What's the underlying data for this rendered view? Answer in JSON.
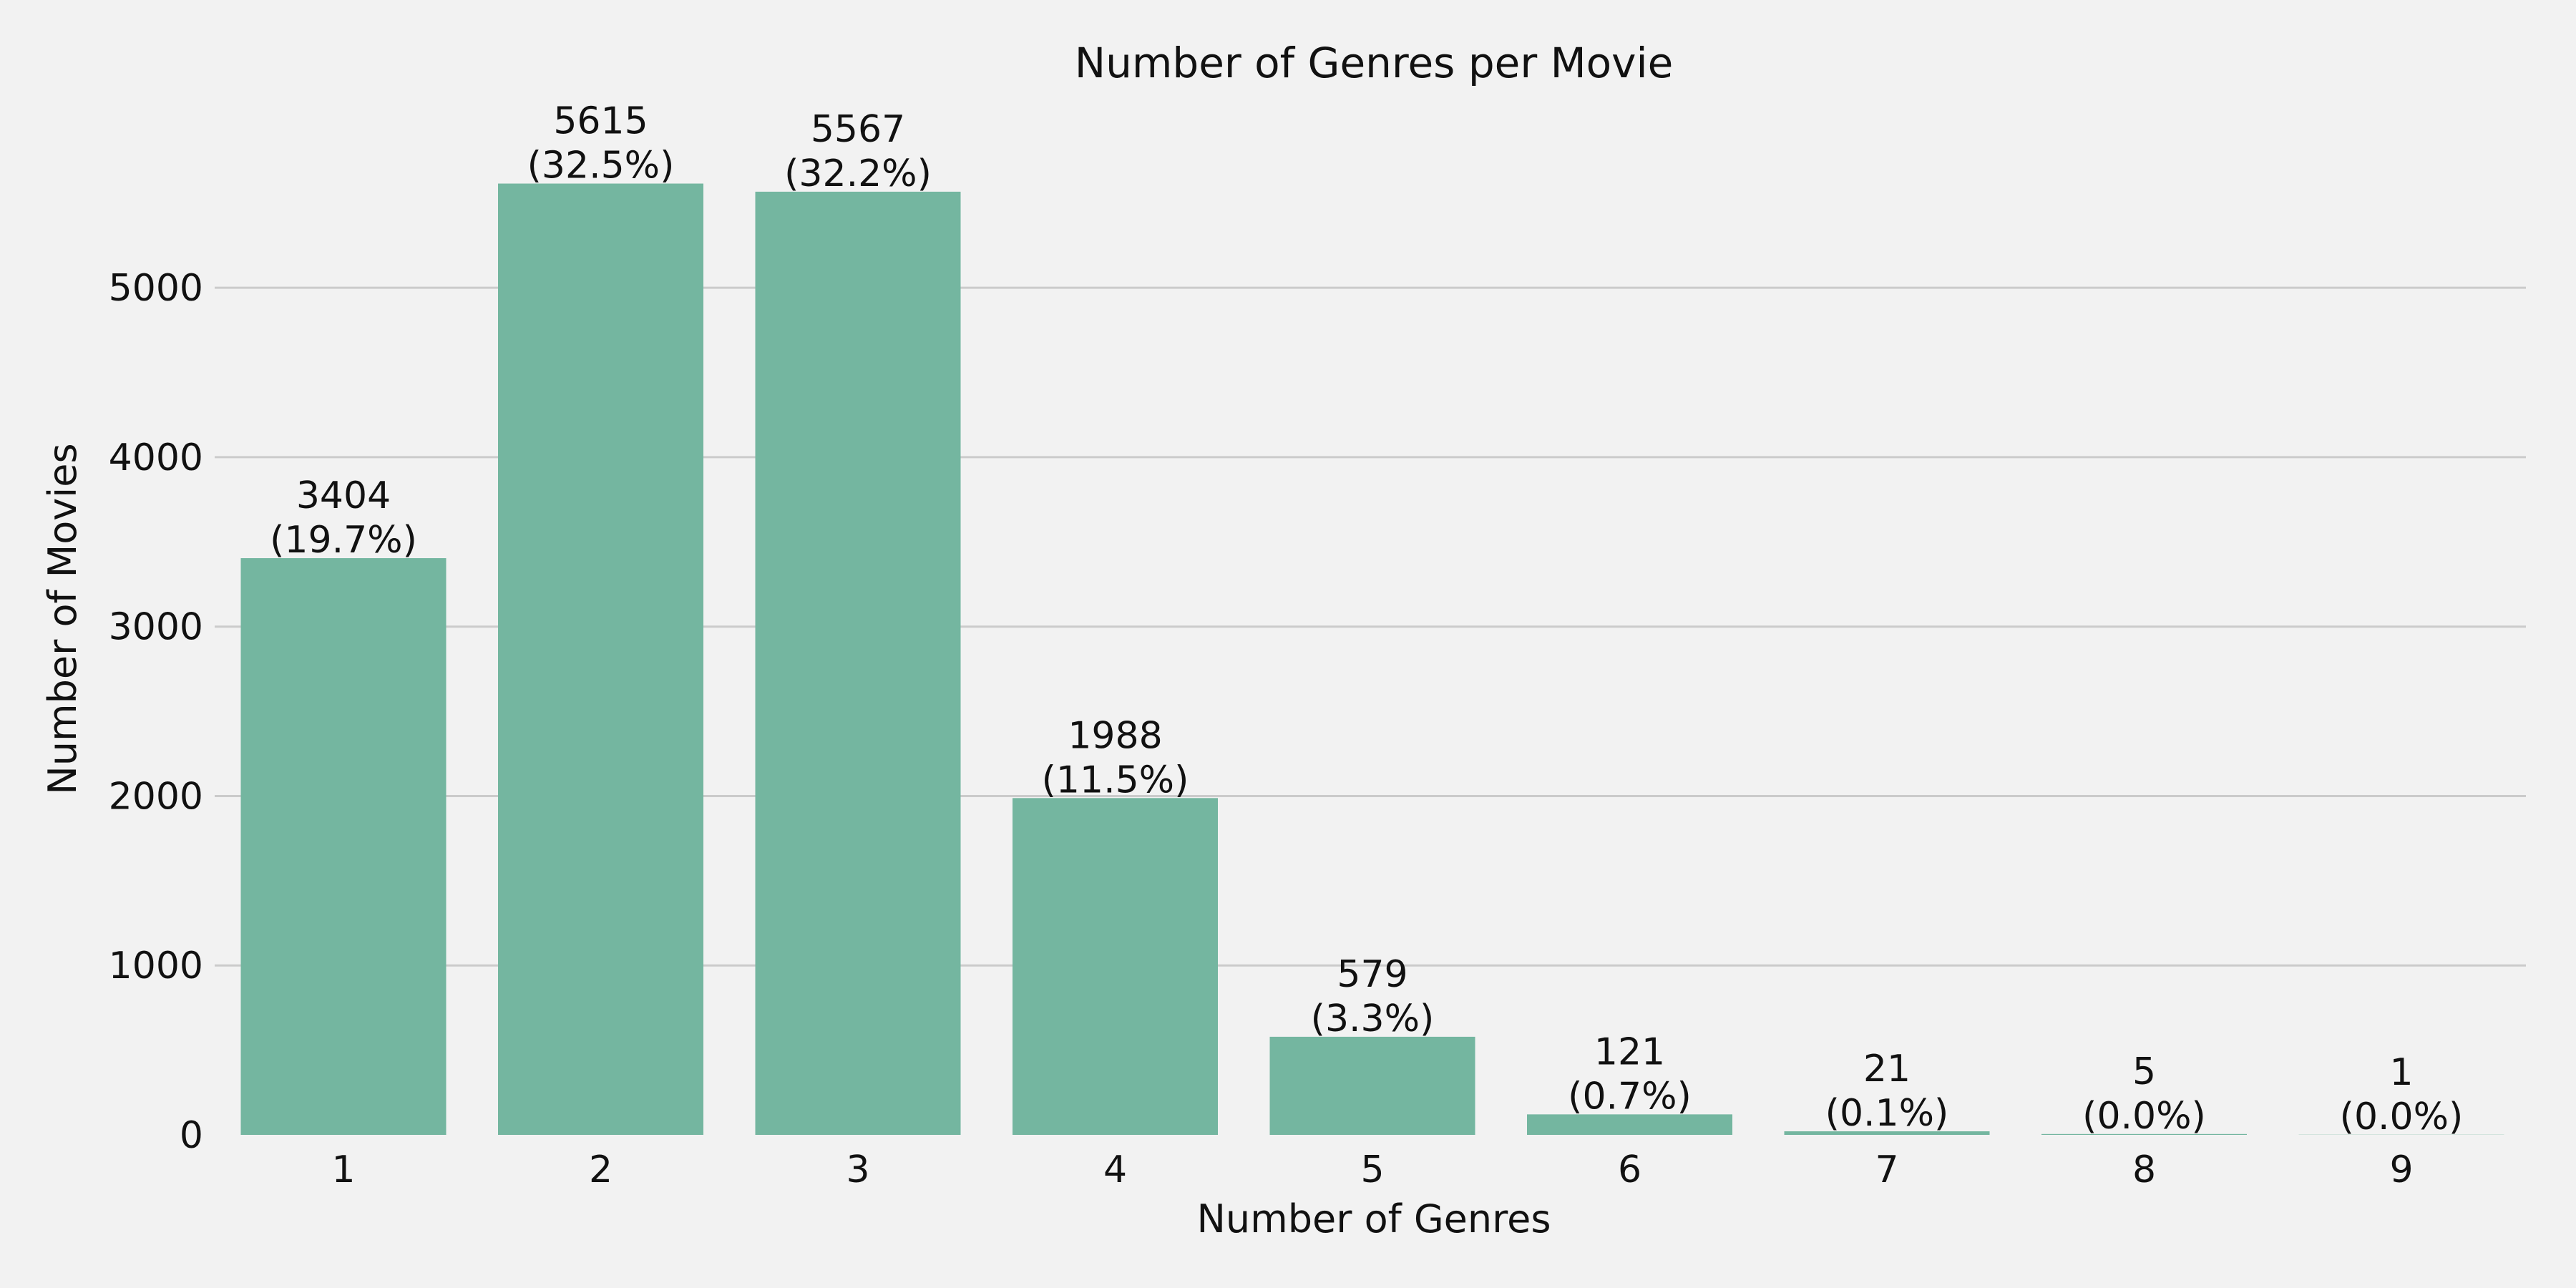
{
  "chart_data": {
    "type": "bar",
    "title": "Number of Genres per Movie",
    "xlabel": "Number of Genres",
    "ylabel": "Number of Movies",
    "categories": [
      "1",
      "2",
      "3",
      "4",
      "5",
      "6",
      "7",
      "8",
      "9"
    ],
    "values": [
      3404,
      5615,
      5567,
      1988,
      579,
      121,
      21,
      5,
      1
    ],
    "percent_labels": [
      "(19.7%)",
      "(32.5%)",
      "(32.2%)",
      "(11.5%)",
      "(3.3%)",
      "(0.7%)",
      "(0.1%)",
      "(0.0%)",
      "(0.0%)"
    ],
    "yticks": [
      0,
      1000,
      2000,
      3000,
      4000,
      5000
    ],
    "ylim": [
      0,
      5896
    ],
    "grid": "horizontal",
    "legend": "none",
    "bar_color": "#74b6a0",
    "background_color": "#f2f2f2",
    "grid_color": "#cbcbcb"
  }
}
